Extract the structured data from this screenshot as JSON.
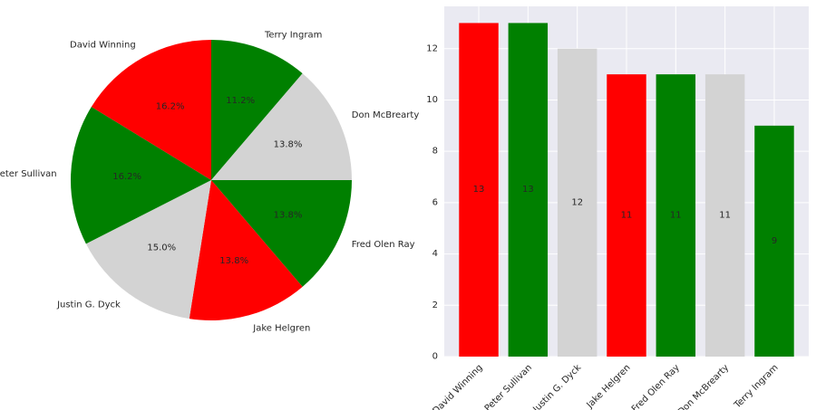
{
  "chart_data": [
    {
      "type": "pie",
      "labels": [
        "Terry Ingram",
        "Don McBrearty",
        "Fred Olen Ray",
        "Jake Helgren",
        "Justin G. Dyck",
        "Peter Sullivan",
        "David Winning"
      ],
      "values": [
        9,
        11,
        11,
        11,
        12,
        13,
        13
      ],
      "percent_labels": [
        "11.2%",
        "13.8%",
        "13.8%",
        "13.8%",
        "15.0%",
        "16.2%",
        "16.2%"
      ],
      "colors": [
        "#008000",
        "#d3d3d3",
        "#008000",
        "#ff0000",
        "#d3d3d3",
        "#008000",
        "#ff0000"
      ],
      "start_angle_deg": 90,
      "direction": "clockwise"
    },
    {
      "type": "bar",
      "categories": [
        "David Winning",
        "Peter Sullivan",
        "Justin G. Dyck",
        "Jake Helgren",
        "Fred Olen Ray",
        "Don McBrearty",
        "Terry Ingram"
      ],
      "values": [
        13,
        13,
        12,
        11,
        11,
        11,
        9
      ],
      "value_labels": [
        "13",
        "13",
        "12",
        "11",
        "11",
        "11",
        "9"
      ],
      "colors": [
        "#ff0000",
        "#008000",
        "#d3d3d3",
        "#ff0000",
        "#008000",
        "#d3d3d3",
        "#008000"
      ],
      "ylim": [
        0,
        13.65
      ],
      "yticks": [
        0,
        2,
        4,
        6,
        8,
        10,
        12
      ],
      "grid": true,
      "background": "#eaeaf2"
    }
  ]
}
